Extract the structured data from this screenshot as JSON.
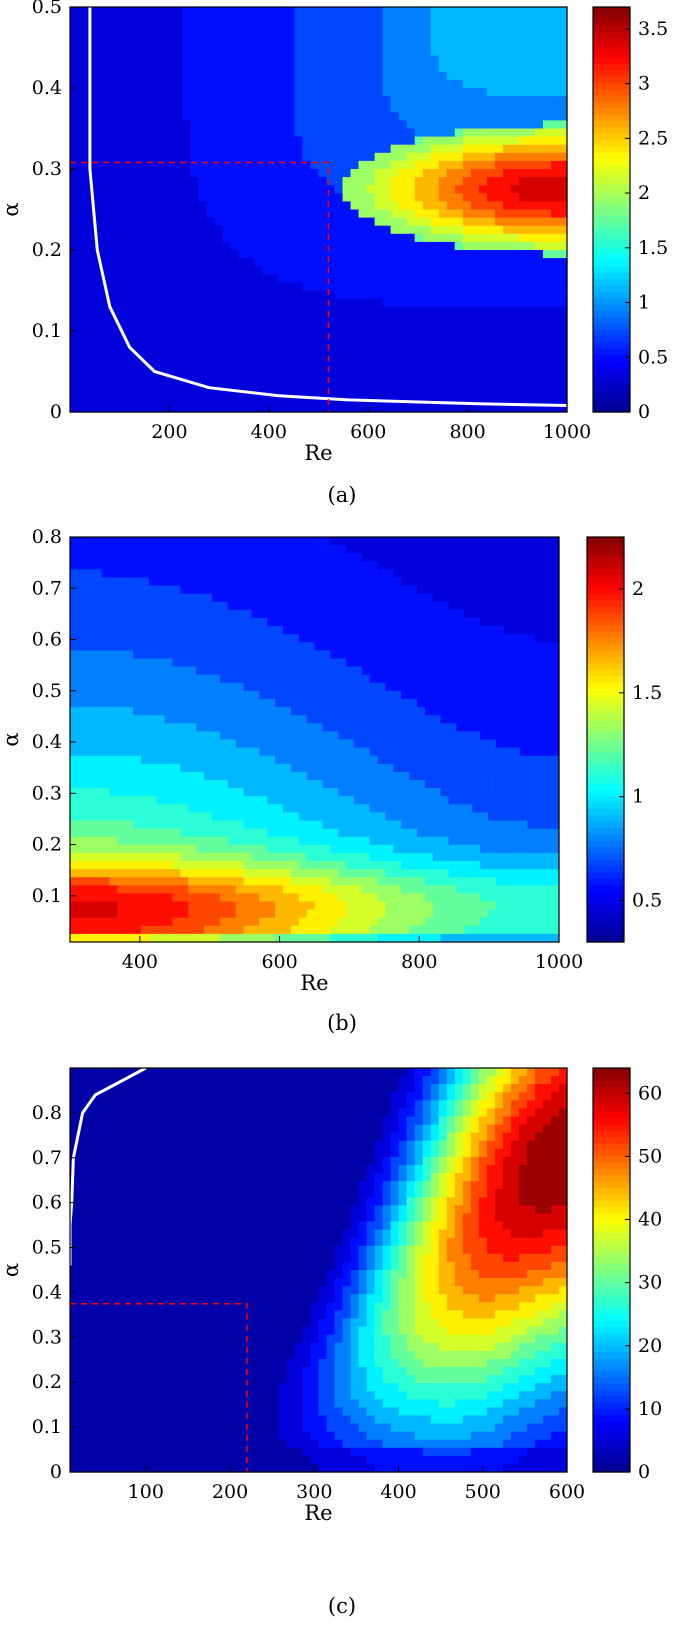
{
  "colors": {
    "jet": [
      "#00008f",
      "#0000ff",
      "#0080ff",
      "#00ffff",
      "#80ff80",
      "#ffff00",
      "#ff8000",
      "#ff0000",
      "#800000"
    ],
    "reference_line": "#ff0000",
    "neutral_curve": "#ffffff",
    "contour": "#000000"
  },
  "chart_data": [
    {
      "type": "contour",
      "caption": "(a)",
      "xlabel": "Re",
      "ylabel": "α",
      "xlim": [
        0,
        1000
      ],
      "ylim": [
        0,
        0.5
      ],
      "xticks": [
        200,
        400,
        600,
        800,
        1000
      ],
      "yticks": [
        0,
        0.1,
        0.2,
        0.3,
        0.4,
        0.5
      ],
      "colorbar": {
        "range": [
          0,
          3.7
        ],
        "ticks": [
          0,
          0.5,
          1,
          1.5,
          2,
          2.5,
          3,
          3.5
        ]
      },
      "peak": {
        "Re": 1000,
        "alpha": 0.275,
        "value": 3.7
      },
      "plateau_value": 1.1,
      "critical_point": {
        "Re": 520,
        "alpha": 0.308
      },
      "neutral_curve": [
        [
          40,
          0.5
        ],
        [
          40,
          0.3
        ],
        [
          55,
          0.2
        ],
        [
          80,
          0.13
        ],
        [
          120,
          0.08
        ],
        [
          170,
          0.05
        ],
        [
          280,
          0.03
        ],
        [
          420,
          0.02
        ],
        [
          560,
          0.015
        ],
        [
          830,
          0.01
        ],
        [
          1000,
          0.008
        ]
      ],
      "grid": false,
      "legend": "colorbar-right"
    },
    {
      "type": "contour",
      "caption": "(b)",
      "xlabel": "Re",
      "ylabel": "α",
      "xlim": [
        300,
        1000
      ],
      "ylim": [
        0.01,
        0.8
      ],
      "xticks": [
        400,
        600,
        800,
        1000
      ],
      "yticks": [
        0.1,
        0.2,
        0.3,
        0.4,
        0.5,
        0.6,
        0.7,
        0.8
      ],
      "colorbar": {
        "range": [
          0.3,
          2.25
        ],
        "ticks": [
          0.5,
          1,
          1.5,
          2
        ]
      },
      "peak": {
        "Re": 300,
        "alpha": 0.08,
        "value": 2.25
      },
      "valley_alpha": 0.09,
      "grid": false,
      "legend": "colorbar-right"
    },
    {
      "type": "contour",
      "caption": "(c)",
      "xlabel": "Re",
      "ylabel": "α",
      "xlim": [
        10,
        600
      ],
      "ylim": [
        0,
        0.9
      ],
      "xticks": [
        100,
        200,
        300,
        400,
        500,
        600
      ],
      "yticks": [
        0,
        0.1,
        0.2,
        0.3,
        0.4,
        0.5,
        0.6,
        0.7,
        0.8
      ],
      "colorbar": {
        "range": [
          0,
          64
        ],
        "ticks": [
          0,
          10,
          20,
          30,
          40,
          50,
          60
        ]
      },
      "peak": {
        "Re": 600,
        "alpha": 0.65,
        "value": 64
      },
      "critical_point": {
        "Re": 220,
        "alpha": 0.375
      },
      "neutral_curve": [
        [
          10,
          0.46
        ],
        [
          10,
          0.55
        ],
        [
          12,
          0.6
        ],
        [
          14,
          0.7
        ],
        [
          25,
          0.8
        ],
        [
          40,
          0.84
        ],
        [
          60,
          0.86
        ],
        [
          80,
          0.88
        ],
        [
          100,
          0.9
        ]
      ],
      "grid": false,
      "legend": "colorbar-right"
    }
  ]
}
